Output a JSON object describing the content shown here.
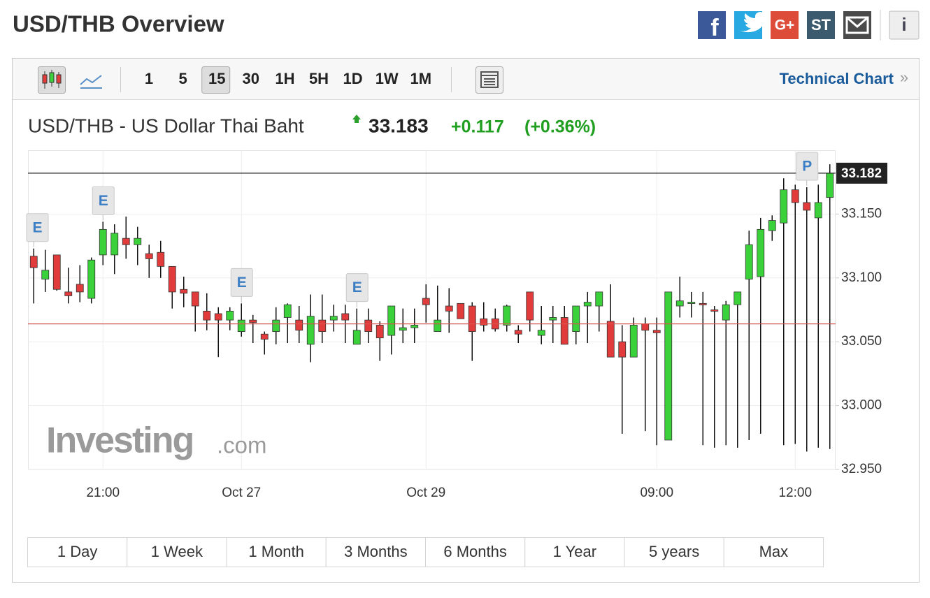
{
  "header": {
    "title": "USD/THB Overview",
    "share": [
      "f",
      "G+",
      "ST"
    ],
    "info": "i"
  },
  "toolbar": {
    "intervals": [
      "1",
      "5",
      "15",
      "30",
      "1H",
      "5H",
      "1D",
      "1W",
      "1M"
    ],
    "active_interval_index": 2,
    "technical_chart": "Technical Chart",
    "more": "»"
  },
  "quote": {
    "name": "USD/THB - US Dollar Thai Baht",
    "price": "33.183",
    "change": "+0.117",
    "change_percent": "(+0.36%)"
  },
  "chart_data": {
    "type": "candlestick",
    "categories": [
      null,
      null,
      null,
      null,
      null,
      null,
      "21:00",
      null,
      null,
      null,
      null,
      null,
      null,
      null,
      null,
      null,
      null,
      null,
      "Oct 27",
      null,
      null,
      null,
      null,
      null,
      null,
      null,
      null,
      null,
      null,
      null,
      null,
      null,
      null,
      null,
      "Oct 29",
      null,
      null,
      null,
      null,
      null,
      null,
      null,
      null,
      null,
      null,
      null,
      null,
      null,
      null,
      null,
      null,
      null,
      null,
      null,
      "09:00",
      null,
      null,
      null,
      null,
      null,
      null,
      null,
      null,
      null,
      null,
      null,
      "12:00",
      null,
      null,
      null
    ],
    "open": [
      33.117,
      33.099,
      33.118,
      33.089,
      33.095,
      33.084,
      33.118,
      33.118,
      33.131,
      33.126,
      33.119,
      33.12,
      33.109,
      33.091,
      33.089,
      33.074,
      33.072,
      33.067,
      33.058,
      33.067,
      33.056,
      33.058,
      33.069,
      33.067,
      33.048,
      33.067,
      33.067,
      33.072,
      33.048,
      33.067,
      33.063,
      33.055,
      33.059,
      33.061,
      33.084,
      33.058,
      33.078,
      33.08,
      33.078,
      33.068,
      33.068,
      33.063,
      33.059,
      33.089,
      33.055,
      33.067,
      33.069,
      33.058,
      33.078,
      33.078,
      33.066,
      33.05,
      33.038,
      33.064,
      33.059,
      32.973,
      33.078,
      33.08,
      33.08,
      33.075,
      33.067,
      33.079,
      33.099,
      33.101,
      33.137,
      33.143,
      33.169,
      33.159,
      33.147,
      33.163
    ],
    "high": [
      33.123,
      33.122,
      33.118,
      33.108,
      33.11,
      33.116,
      33.144,
      33.142,
      33.148,
      33.14,
      33.126,
      33.129,
      33.109,
      33.101,
      33.089,
      33.088,
      33.077,
      33.077,
      33.08,
      33.071,
      33.058,
      33.077,
      33.08,
      33.078,
      33.087,
      33.087,
      33.079,
      33.079,
      33.076,
      33.076,
      33.066,
      33.078,
      33.076,
      33.076,
      33.095,
      33.094,
      33.092,
      33.08,
      33.081,
      33.081,
      33.076,
      33.079,
      33.063,
      33.089,
      33.078,
      33.078,
      33.078,
      33.078,
      33.089,
      33.089,
      33.095,
      33.063,
      33.069,
      33.069,
      33.069,
      33.089,
      33.101,
      33.089,
      33.089,
      33.078,
      33.082,
      33.089,
      33.137,
      33.147,
      33.149,
      33.178,
      33.173,
      33.171,
      33.173,
      33.189
    ],
    "low": [
      33.08,
      33.089,
      33.09,
      33.08,
      33.081,
      33.08,
      33.11,
      33.103,
      33.115,
      33.11,
      33.1,
      33.1,
      33.076,
      33.077,
      33.058,
      33.059,
      33.038,
      33.059,
      33.054,
      33.049,
      33.04,
      33.048,
      33.049,
      33.049,
      33.034,
      33.049,
      33.058,
      33.049,
      33.048,
      33.049,
      33.035,
      33.04,
      33.049,
      33.049,
      33.065,
      33.058,
      33.057,
      33.068,
      33.035,
      33.058,
      33.058,
      33.058,
      33.049,
      33.058,
      33.048,
      33.049,
      33.048,
      33.048,
      33.049,
      33.058,
      33.038,
      32.978,
      33.038,
      32.98,
      32.969,
      32.973,
      33.069,
      33.069,
      32.969,
      32.967,
      32.969,
      32.967,
      32.973,
      32.978,
      33.129,
      32.969,
      32.97,
      32.964,
      32.967,
      32.966
    ],
    "close": [
      33.108,
      33.106,
      33.091,
      33.086,
      33.089,
      33.114,
      33.138,
      33.135,
      33.126,
      33.131,
      33.115,
      33.109,
      33.089,
      33.088,
      33.078,
      33.067,
      33.067,
      33.074,
      33.067,
      33.065,
      33.052,
      33.067,
      33.079,
      33.059,
      33.07,
      33.058,
      33.07,
      33.067,
      33.059,
      33.058,
      33.053,
      33.078,
      33.061,
      33.063,
      33.079,
      33.067,
      33.074,
      33.068,
      33.058,
      33.063,
      33.06,
      33.078,
      33.056,
      33.067,
      33.059,
      33.069,
      33.048,
      33.078,
      33.081,
      33.089,
      33.038,
      33.038,
      33.063,
      33.059,
      33.057,
      33.089,
      33.082,
      33.081,
      33.079,
      33.074,
      33.079,
      33.089,
      33.126,
      33.138,
      33.145,
      33.169,
      33.159,
      33.153,
      33.159,
      33.182
    ],
    "up_color": "#3ad13a",
    "down_color": "#e23b3b",
    "ylim": [
      32.95,
      33.2
    ],
    "yticks": [
      {
        "value": 33.15,
        "label": "33.150"
      },
      {
        "value": 33.1,
        "label": "33.100"
      },
      {
        "value": 33.05,
        "label": "33.050"
      },
      {
        "value": 33,
        "label": "33.000"
      },
      {
        "value": 32.95,
        "label": "32.950"
      }
    ],
    "grid": true,
    "reference_lines": [
      {
        "value": 33.182,
        "label": "33.182",
        "color": "#222222"
      },
      {
        "value": 33.064,
        "color": "#d9534f"
      }
    ],
    "events": [
      {
        "label": "E",
        "category": 0
      },
      {
        "label": "E",
        "category": 6
      },
      {
        "label": "E",
        "category": 18
      },
      {
        "label": "E",
        "category": 28
      },
      {
        "label": "P",
        "category": 67
      }
    ]
  },
  "range_buttons": [
    "1 Day",
    "1 Week",
    "1 Month",
    "3 Months",
    "6 Months",
    "1 Year",
    "5 years",
    "Max"
  ],
  "watermark": {
    "brand": "Investing",
    "suffix": ".com"
  }
}
